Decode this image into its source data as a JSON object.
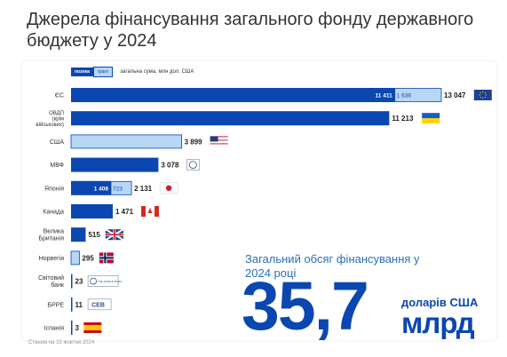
{
  "title": "Джерела фінансування загального фонду державного бюджету у 2024",
  "legend": {
    "loan": "позика",
    "grant": "грант",
    "total": "загальна сума, млн дол. США"
  },
  "note": "Станом на 15 жовтня 2024",
  "summary": {
    "caption": "Загальний обсяг фінансування у 2024 році",
    "value": "35,7",
    "unit_line1": "доларів США",
    "unit_line2": "млрд"
  },
  "colors": {
    "loan": "#0a47b0",
    "grant": "#b7d7f3",
    "accent": "#0a47b0"
  },
  "chart_data": {
    "type": "bar",
    "orientation": "horizontal",
    "stacked": true,
    "categories": [
      "ЄС",
      "ОВДП (крім військових)",
      "США",
      "МВФ",
      "Японія",
      "Канада",
      "Велика Британія",
      "Норвегія",
      "Світовий банк",
      "БРРЕ",
      "Іспанія"
    ],
    "category_lines": [
      [
        "ЄС"
      ],
      [
        "ОВДП",
        "(крім",
        "військових)"
      ],
      [
        "США"
      ],
      [
        "МВФ"
      ],
      [
        "Японія"
      ],
      [
        "Канада"
      ],
      [
        "Велика",
        "Британія"
      ],
      [
        "Норвегія"
      ],
      [
        "Світовий",
        "банк"
      ],
      [
        "БРРЕ"
      ],
      [
        "Іспанія"
      ]
    ],
    "series": [
      {
        "name": "позика",
        "values": [
          11411,
          11213,
          0,
          3078,
          1408,
          1471,
          515,
          0,
          23,
          11,
          3
        ]
      },
      {
        "name": "грант",
        "values": [
          1636,
          0,
          3899,
          0,
          723,
          0,
          0,
          295,
          0,
          0,
          0
        ]
      }
    ],
    "segment_labels": {
      "loan": [
        "11 411",
        "",
        "",
        "",
        "1 408",
        "",
        "",
        "",
        "",
        "",
        ""
      ],
      "grant": [
        "1 636",
        "",
        "",
        "",
        "723",
        "",
        "",
        "",
        "",
        "",
        ""
      ]
    },
    "total_labels": [
      "13 047",
      "11 213",
      "3 899",
      "3 078",
      "2 131",
      "1 471",
      "515",
      "295",
      "23",
      "11",
      "3"
    ],
    "flags": [
      "eu-flag-icon",
      "ukraine-flag-icon",
      "usa-flag-icon",
      "imf-logo-icon",
      "japan-flag-icon",
      "canada-flag-icon",
      "uk-flag-icon",
      "norway-flag-icon",
      "world-bank-logo-icon",
      "ceb-logo-icon",
      "spain-flag-icon"
    ],
    "logo_text": {
      "world-bank-logo-icon": "THE WORLD BANK",
      "ceb-logo-icon": "CEB"
    },
    "xlim": [
      0,
      13047
    ],
    "xlabel": "",
    "ylabel": ""
  }
}
